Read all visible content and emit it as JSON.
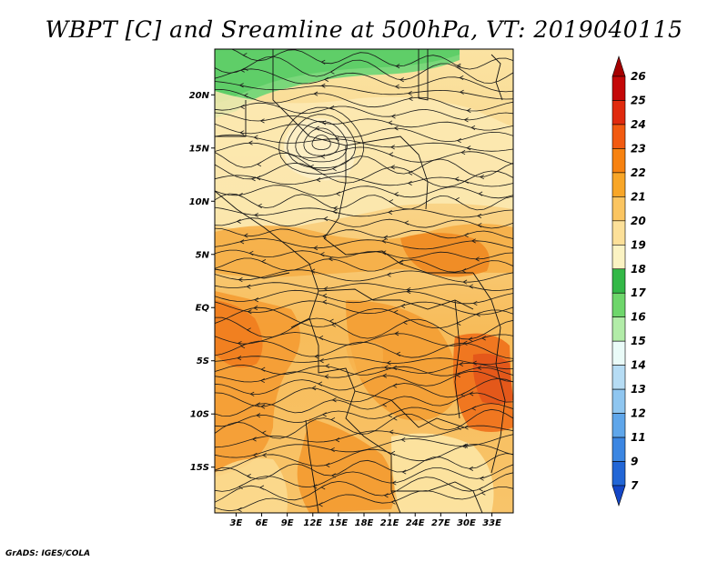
{
  "title": "WBPT [C] and Sreamline at 500hPa, VT: 2019040115",
  "credit": "GrADS: IGES/COLA",
  "map": {
    "lat_labels": [
      "20N",
      "15N",
      "10N",
      "5N",
      "EQ",
      "5S",
      "10S",
      "15S"
    ],
    "lat_values": [
      20,
      15,
      10,
      5,
      0,
      -5,
      -10,
      -15
    ],
    "lon_labels": [
      "3E",
      "6E",
      "9E",
      "12E",
      "15E",
      "18E",
      "21E",
      "24E",
      "27E",
      "30E",
      "33E"
    ],
    "lon_values": [
      3,
      6,
      9,
      12,
      15,
      18,
      21,
      24,
      27,
      30,
      33
    ],
    "lon_range": [
      0.5,
      35.5
    ],
    "lat_range": [
      -19.3,
      24.3
    ]
  },
  "colorbar": {
    "levels": [
      "26",
      "25",
      "24",
      "23",
      "22",
      "21",
      "20",
      "19",
      "18",
      "17",
      "16",
      "15",
      "14",
      "13",
      "12",
      "11",
      "9",
      "7"
    ],
    "colors": [
      "#a50000",
      "#c40808",
      "#e02a0e",
      "#f25a10",
      "#f78210",
      "#f8a628",
      "#fbc561",
      "#fce099",
      "#fbf3c3",
      "#33b847",
      "#6ed66b",
      "#b2eca8",
      "#eafbf8",
      "#b6dcf4",
      "#8fc6f0",
      "#5fa6ea",
      "#3b86e2",
      "#2266d6",
      "#1446c6"
    ]
  }
}
